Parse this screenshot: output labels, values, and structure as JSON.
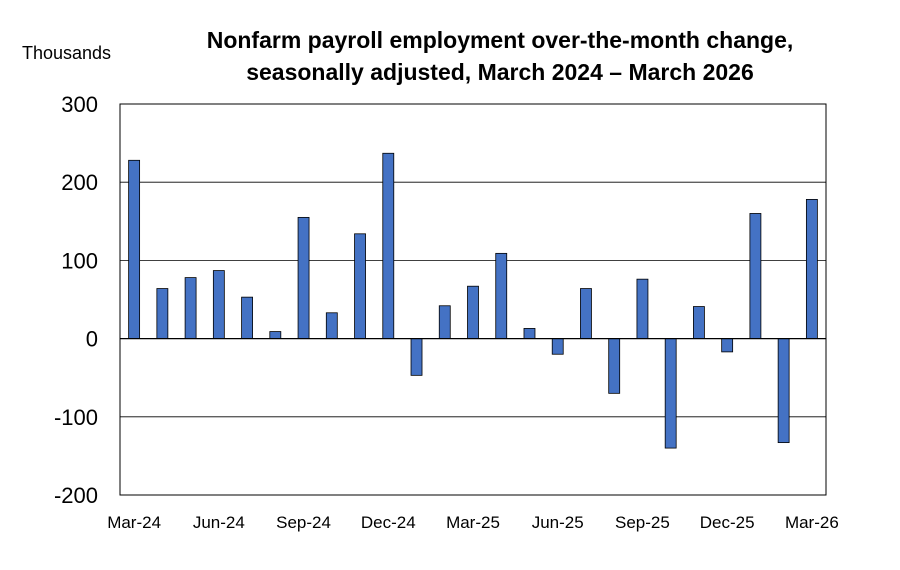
{
  "chart_data": {
    "type": "bar",
    "title_lines": [
      "Nonfarm payroll employment over-the-month change,",
      "seasonally adjusted, March 2024 – March 2026"
    ],
    "ylabel": "Thousands",
    "xlabel": "",
    "ylim": [
      -200,
      300
    ],
    "yticks": [
      300,
      200,
      100,
      0,
      -100,
      -200
    ],
    "grid": true,
    "bar_color": "#4472c4",
    "categories": [
      "Mar-24",
      "Apr-24",
      "May-24",
      "Jun-24",
      "Jul-24",
      "Aug-24",
      "Sep-24",
      "Oct-24",
      "Nov-24",
      "Dec-24",
      "Jan-25",
      "Feb-25",
      "Mar-25",
      "Apr-25",
      "May-25",
      "Jun-25",
      "Jul-25",
      "Aug-25",
      "Sep-25",
      "Oct-25",
      "Nov-25",
      "Dec-25",
      "Jan-26",
      "Feb-26",
      "Mar-26"
    ],
    "values": [
      228,
      64,
      78,
      87,
      53,
      9,
      155,
      33,
      134,
      237,
      -47,
      42,
      67,
      109,
      13,
      -20,
      64,
      -70,
      76,
      -140,
      41,
      -17,
      160,
      -133,
      178
    ],
    "xtick_labels": [
      "Mar-24",
      "Jun-24",
      "Sep-24",
      "Dec-24",
      "Mar-25",
      "Jun-25",
      "Sep-25",
      "Dec-25",
      "Mar-26"
    ]
  }
}
